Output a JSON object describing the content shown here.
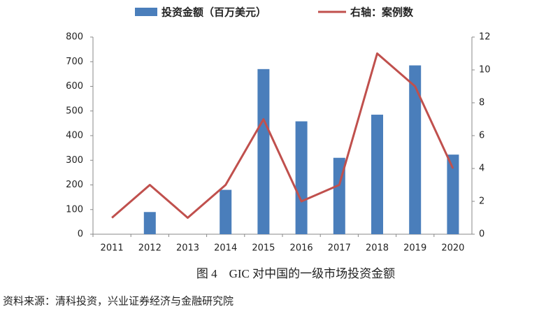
{
  "chart_data": {
    "type": "bar-line",
    "categories": [
      "2011",
      "2012",
      "2013",
      "2014",
      "2015",
      "2016",
      "2017",
      "2018",
      "2019",
      "2020"
    ],
    "series": [
      {
        "name": "投资金额（百万美元）",
        "type": "bar",
        "color": "#4a7ebb",
        "values": [
          null,
          90,
          null,
          180,
          670,
          458,
          310,
          485,
          685,
          323
        ]
      },
      {
        "name": "右轴：案例数",
        "type": "line",
        "axis": "y2",
        "color": "#c0504d",
        "values": [
          1,
          3,
          1,
          3,
          7,
          2,
          3,
          11,
          9,
          4
        ]
      }
    ],
    "ylim": [
      0,
      800
    ],
    "yticks": [
      0,
      100,
      200,
      300,
      400,
      500,
      600,
      700,
      800
    ],
    "y2lim": [
      0,
      12
    ],
    "y2ticks": [
      0,
      2,
      4,
      6,
      8,
      10,
      12
    ],
    "grid": false,
    "legend": "top",
    "caption": "图 4　GIC 对中国的一级市场投资金额",
    "source": "资料来源：清科投资，兴业证券经济与金融研究院"
  }
}
